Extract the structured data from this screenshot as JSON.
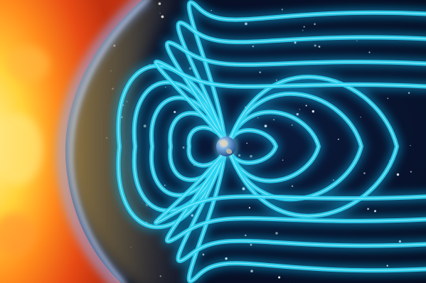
{
  "image": {
    "colors": {
      "space": "#07112a",
      "sun_core": "#ffd23a",
      "sun_edge": "#e03a12",
      "bow_shock": "#8fb6ff",
      "field_lines": "#29d4f2",
      "field_glow": "#0aa6d8",
      "earth_ocean": "#1f5fa8",
      "earth_land": "#d8d2b8"
    },
    "elements": {
      "sun": "solar-wind-sun",
      "shock": "bow-shock-arc",
      "field": "magnetic-field-lines",
      "planet": "earth-globe",
      "background": "starfield"
    }
  }
}
